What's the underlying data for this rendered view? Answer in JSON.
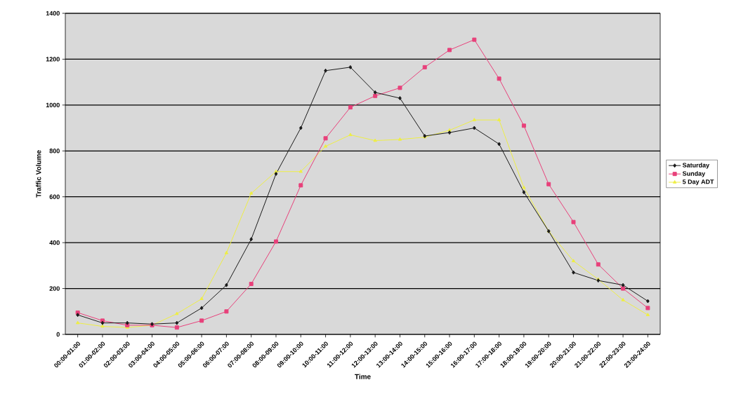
{
  "chart_data": {
    "type": "line",
    "xlabel": "Time",
    "ylabel": "Traffic Volume",
    "categories": [
      "00:00-01:00",
      "01:00-02:00",
      "02:00-03:00",
      "03:00-04:00",
      "04:00-05:00",
      "05:00-06:00",
      "06:00-07:00",
      "07:00-08:00",
      "08:00-09:00",
      "09:00-10:00",
      "10:00-11:00",
      "11:00-12:00",
      "12:00-13:00",
      "13:00-14:00",
      "14:00-15:00",
      "15:00-16:00",
      "16:00-17:00",
      "17:00-18:00",
      "18:00-19:00",
      "19:00-20:00",
      "20:00-21:00",
      "21:00-22:00",
      "22:00-23:00",
      "23:00-24:00"
    ],
    "series": [
      {
        "name": "Saturday",
        "color": "#1a1a1a",
        "marker": "diamond",
        "values": [
          85,
          50,
          50,
          45,
          50,
          115,
          215,
          415,
          700,
          900,
          1150,
          1165,
          1055,
          1030,
          865,
          880,
          900,
          830,
          620,
          450,
          270,
          235,
          215,
          145
        ]
      },
      {
        "name": "Sunday",
        "color": "#e8407a",
        "marker": "square",
        "values": [
          95,
          60,
          40,
          40,
          30,
          60,
          100,
          220,
          405,
          650,
          855,
          990,
          1040,
          1075,
          1165,
          1240,
          1285,
          1115,
          910,
          655,
          490,
          305,
          200,
          115
        ]
      },
      {
        "name": "5 Day ADT",
        "color": "#eeee44",
        "marker": "triangle",
        "values": [
          50,
          35,
          30,
          40,
          90,
          155,
          355,
          615,
          710,
          710,
          820,
          870,
          845,
          850,
          860,
          890,
          935,
          935,
          640,
          450,
          320,
          240,
          150,
          85
        ]
      }
    ],
    "ylim": [
      0,
      1400
    ],
    "yticks": [
      0,
      200,
      400,
      600,
      800,
      1000,
      1200,
      1400
    ],
    "grid": "y",
    "legend": "right",
    "line_style": "solid"
  }
}
